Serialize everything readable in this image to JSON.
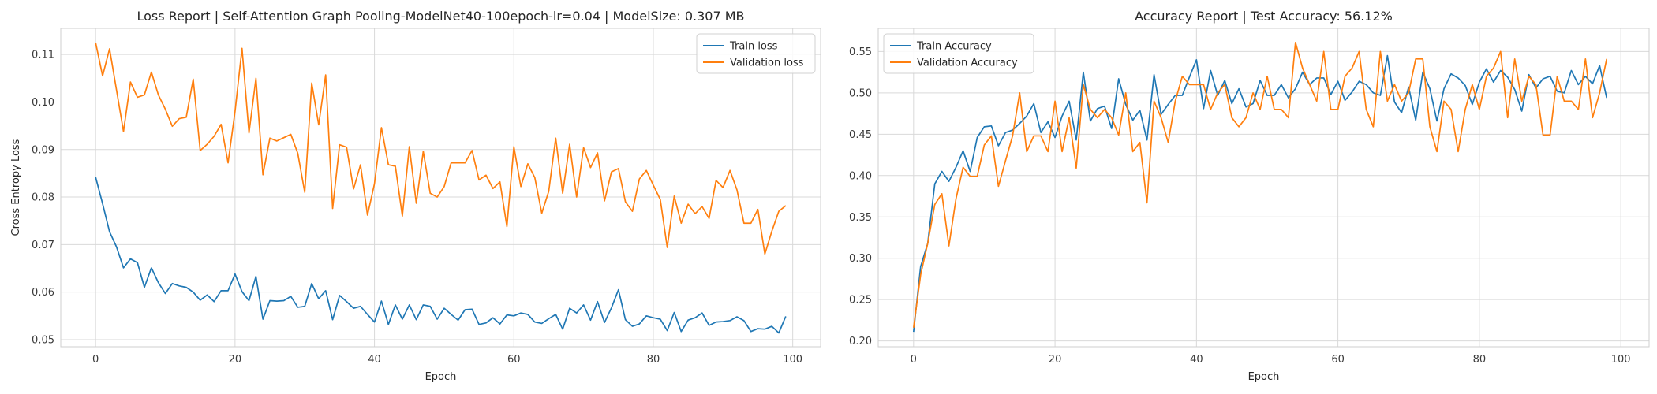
{
  "chart_data": [
    {
      "type": "line",
      "title": "Loss Report | Self-Attention Graph Pooling-ModelNet40-100epoch-lr=0.04 | ModelSize: 0.307 MB",
      "xlabel": "Epoch",
      "ylabel": "Cross Entropy Loss",
      "xlim": [
        -5,
        104
      ],
      "ylim": [
        0.0485,
        0.1155
      ],
      "xticks": [
        0,
        20,
        40,
        60,
        80,
        100
      ],
      "yticks": [
        0.05,
        0.06,
        0.07,
        0.08,
        0.09,
        0.1,
        0.11
      ],
      "ytick_labels": [
        "0.05",
        "0.06",
        "0.07",
        "0.08",
        "0.09",
        "0.10",
        "0.11"
      ],
      "grid": true,
      "legend": "top-right",
      "series": [
        {
          "name": "Train loss",
          "color": "#1f77b4",
          "values": [
            0.0842,
            0.0786,
            0.0727,
            0.0695,
            0.0651,
            0.067,
            0.0662,
            0.061,
            0.0651,
            0.062,
            0.0597,
            0.0618,
            0.0613,
            0.061,
            0.06,
            0.0583,
            0.0594,
            0.058,
            0.0603,
            0.0603,
            0.0638,
            0.0601,
            0.0582,
            0.0633,
            0.0543,
            0.0582,
            0.0581,
            0.0582,
            0.0591,
            0.0568,
            0.057,
            0.0618,
            0.0586,
            0.0603,
            0.0542,
            0.0593,
            0.058,
            0.0566,
            0.057,
            0.0553,
            0.0537,
            0.0581,
            0.0532,
            0.0573,
            0.0543,
            0.0573,
            0.0542,
            0.0573,
            0.057,
            0.0543,
            0.0566,
            0.0553,
            0.0541,
            0.0563,
            0.0564,
            0.0532,
            0.0535,
            0.0546,
            0.0533,
            0.0552,
            0.055,
            0.0556,
            0.0553,
            0.0537,
            0.0534,
            0.0544,
            0.0553,
            0.0522,
            0.0566,
            0.0556,
            0.0573,
            0.0541,
            0.058,
            0.0536,
            0.0567,
            0.0605,
            0.0542,
            0.0528,
            0.0533,
            0.055,
            0.0546,
            0.0543,
            0.0519,
            0.0557,
            0.0517,
            0.0541,
            0.0546,
            0.0556,
            0.053,
            0.0537,
            0.0538,
            0.054,
            0.0548,
            0.054,
            0.0517,
            0.0523,
            0.0522,
            0.0528,
            0.0514,
            0.0549
          ]
        },
        {
          "name": "Validation loss",
          "color": "#ff7f0e",
          "values": [
            0.1125,
            0.1055,
            0.1112,
            0.1025,
            0.0938,
            0.1042,
            0.101,
            0.1015,
            0.1063,
            0.1015,
            0.0985,
            0.0949,
            0.0965,
            0.0968,
            0.1048,
            0.0898,
            0.0911,
            0.0928,
            0.0953,
            0.0872,
            0.098,
            0.1113,
            0.0935,
            0.105,
            0.0847,
            0.0924,
            0.0918,
            0.0925,
            0.0932,
            0.0892,
            0.081,
            0.104,
            0.0952,
            0.1057,
            0.0776,
            0.091,
            0.0905,
            0.0817,
            0.0868,
            0.0762,
            0.0828,
            0.0946,
            0.0868,
            0.0865,
            0.076,
            0.0906,
            0.0787,
            0.0896,
            0.0808,
            0.08,
            0.0822,
            0.0872,
            0.0872,
            0.0872,
            0.0898,
            0.0836,
            0.0846,
            0.0818,
            0.0832,
            0.0738,
            0.0906,
            0.0822,
            0.087,
            0.0841,
            0.0766,
            0.0812,
            0.0924,
            0.0808,
            0.0911,
            0.08,
            0.0904,
            0.0862,
            0.0893,
            0.0792,
            0.0853,
            0.086,
            0.079,
            0.077,
            0.0838,
            0.0856,
            0.0825,
            0.0795,
            0.0694,
            0.0802,
            0.0745,
            0.0785,
            0.0765,
            0.078,
            0.0755,
            0.0835,
            0.082,
            0.0856,
            0.0815,
            0.0745,
            0.0745,
            0.0774,
            0.068,
            0.0728,
            0.077,
            0.0782
          ]
        }
      ]
    },
    {
      "type": "line",
      "title": "Accuracy Report | Test Accuracy: 56.12%",
      "xlabel": "Epoch",
      "ylabel": "",
      "xlim": [
        -5,
        104
      ],
      "ylim": [
        0.193,
        0.578
      ],
      "xticks": [
        0,
        20,
        40,
        60,
        80,
        100
      ],
      "yticks": [
        0.2,
        0.25,
        0.3,
        0.35,
        0.4,
        0.45,
        0.5,
        0.55
      ],
      "ytick_labels": [
        "0.20",
        "0.25",
        "0.30",
        "0.35",
        "0.40",
        "0.45",
        "0.50",
        "0.55"
      ],
      "grid": true,
      "legend": "top-left",
      "series": [
        {
          "name": "Train Accuracy",
          "color": "#1f77b4",
          "values": [
            0.211,
            0.29,
            0.318,
            0.39,
            0.405,
            0.393,
            0.41,
            0.43,
            0.405,
            0.446,
            0.459,
            0.46,
            0.436,
            0.452,
            0.455,
            0.463,
            0.472,
            0.487,
            0.452,
            0.465,
            0.446,
            0.472,
            0.49,
            0.443,
            0.525,
            0.466,
            0.481,
            0.484,
            0.457,
            0.517,
            0.486,
            0.467,
            0.479,
            0.443,
            0.522,
            0.474,
            0.486,
            0.497,
            0.497,
            0.519,
            0.54,
            0.481,
            0.527,
            0.497,
            0.515,
            0.487,
            0.505,
            0.483,
            0.487,
            0.515,
            0.497,
            0.497,
            0.51,
            0.494,
            0.505,
            0.525,
            0.51,
            0.518,
            0.518,
            0.498,
            0.514,
            0.491,
            0.501,
            0.514,
            0.51,
            0.5,
            0.497,
            0.545,
            0.489,
            0.476,
            0.507,
            0.467,
            0.525,
            0.505,
            0.466,
            0.505,
            0.523,
            0.518,
            0.509,
            0.486,
            0.513,
            0.529,
            0.513,
            0.527,
            0.519,
            0.504,
            0.478,
            0.522,
            0.506,
            0.517,
            0.52,
            0.502,
            0.5,
            0.527,
            0.51,
            0.52,
            0.511,
            0.533,
            0.494
          ]
        },
        {
          "name": "Validation Accuracy",
          "color": "#ff7f0e",
          "values": [
            0.216,
            0.28,
            0.318,
            0.365,
            0.378,
            0.315,
            0.372,
            0.41,
            0.399,
            0.399,
            0.437,
            0.448,
            0.387,
            0.418,
            0.448,
            0.5,
            0.429,
            0.448,
            0.448,
            0.429,
            0.49,
            0.429,
            0.47,
            0.409,
            0.51,
            0.48,
            0.47,
            0.48,
            0.47,
            0.449,
            0.5,
            0.429,
            0.44,
            0.367,
            0.49,
            0.47,
            0.44,
            0.49,
            0.52,
            0.51,
            0.51,
            0.51,
            0.48,
            0.5,
            0.51,
            0.47,
            0.459,
            0.47,
            0.5,
            0.48,
            0.52,
            0.48,
            0.48,
            0.47,
            0.561,
            0.53,
            0.51,
            0.49,
            0.55,
            0.48,
            0.48,
            0.52,
            0.53,
            0.55,
            0.48,
            0.459,
            0.55,
            0.49,
            0.51,
            0.49,
            0.5,
            0.541,
            0.541,
            0.459,
            0.429,
            0.49,
            0.48,
            0.429,
            0.48,
            0.51,
            0.48,
            0.52,
            0.53,
            0.55,
            0.47,
            0.541,
            0.49,
            0.52,
            0.51,
            0.449,
            0.449,
            0.52,
            0.49,
            0.49,
            0.48,
            0.541,
            0.47,
            0.5,
            0.541
          ]
        }
      ]
    }
  ]
}
